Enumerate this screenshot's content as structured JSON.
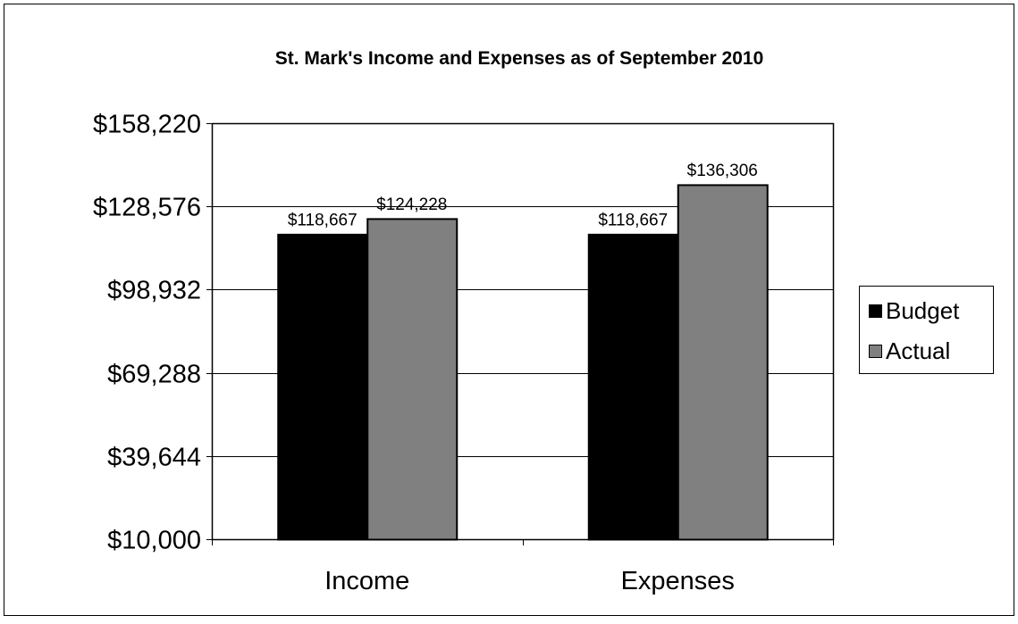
{
  "chart_data": {
    "type": "bar",
    "title": "St. Mark's Income and Expenses as of September 2010",
    "xlabel": "",
    "ylabel": "",
    "categories": [
      "Income",
      "Expenses"
    ],
    "series": [
      {
        "name": "Budget",
        "values": [
          118667,
          118667
        ],
        "labels": [
          "$118,667",
          "$118,667"
        ],
        "color": "#000000"
      },
      {
        "name": "Actual",
        "values": [
          124228,
          136306
        ],
        "labels": [
          "$124,228",
          "$136,306"
        ],
        "color": "#808080"
      }
    ],
    "ylim": [
      10000,
      158220
    ],
    "yticks": [
      10000,
      39644,
      69288,
      98932,
      128576,
      158220
    ],
    "ytick_labels": [
      "$10,000",
      "$39,644",
      "$69,288",
      "$98,932",
      "$128,576",
      "$158,220"
    ],
    "grid": true,
    "legend_position": "right"
  }
}
